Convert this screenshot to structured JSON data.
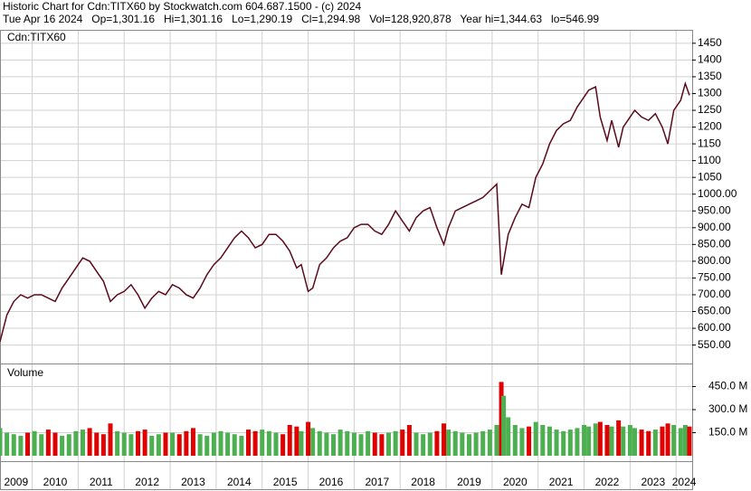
{
  "header": {
    "line1": "Historic Chart for Cdn:TITX60 by Stockwatch.com 604.687.1500 - (c) 2024",
    "line2": "Tue Apr 16 2024   Op=1,301.16   Hi=1,301.16   Lo=1,290.19   Cl=1,294.98   Vol=128,920,878   Year hi=1,344.63   lo=546.99"
  },
  "chart_data": [
    {
      "type": "line",
      "x": [
        2009.3,
        2009.45,
        2009.6,
        2009.75,
        2009.9,
        2010.05,
        2010.2,
        2010.35,
        2010.5,
        2010.65,
        2010.8,
        2010.95,
        2011.1,
        2011.25,
        2011.4,
        2011.55,
        2011.7,
        2011.85,
        2012.0,
        2012.15,
        2012.3,
        2012.45,
        2012.6,
        2012.75,
        2012.9,
        2013.05,
        2013.2,
        2013.35,
        2013.5,
        2013.65,
        2013.8,
        2013.95,
        2014.1,
        2014.25,
        2014.4,
        2014.55,
        2014.7,
        2014.85,
        2015.0,
        2015.15,
        2015.3,
        2015.45,
        2015.6,
        2015.75,
        2015.85,
        2016.0,
        2016.1,
        2016.25,
        2016.4,
        2016.55,
        2016.7,
        2016.85,
        2017.0,
        2017.15,
        2017.3,
        2017.45,
        2017.6,
        2017.75,
        2017.9,
        2018.05,
        2018.2,
        2018.35,
        2018.5,
        2018.65,
        2018.8,
        2018.95,
        2019.05,
        2019.2,
        2019.35,
        2019.5,
        2019.65,
        2019.8,
        2019.95,
        2020.1,
        2020.2,
        2020.25,
        2020.35,
        2020.5,
        2020.65,
        2020.8,
        2020.95,
        2021.1,
        2021.25,
        2021.4,
        2021.55,
        2021.7,
        2021.85,
        2022.0,
        2022.1,
        2022.25,
        2022.35,
        2022.5,
        2022.6,
        2022.75,
        2022.85,
        2023.0,
        2023.1,
        2023.25,
        2023.4,
        2023.55,
        2023.7,
        2023.82,
        2023.95,
        2024.1,
        2024.2,
        2024.29
      ],
      "series": [
        {
          "name": "Cdn:TITX60",
          "color": "#5a0a1a",
          "values": [
            560,
            640,
            680,
            700,
            690,
            700,
            700,
            690,
            680,
            720,
            750,
            780,
            810,
            800,
            770,
            740,
            680,
            700,
            710,
            730,
            700,
            660,
            690,
            710,
            700,
            730,
            720,
            700,
            690,
            720,
            760,
            790,
            810,
            840,
            870,
            890,
            870,
            840,
            850,
            880,
            880,
            860,
            830,
            780,
            790,
            710,
            720,
            790,
            810,
            840,
            860,
            870,
            900,
            910,
            910,
            890,
            880,
            910,
            950,
            920,
            890,
            930,
            950,
            960,
            900,
            850,
            900,
            950,
            960,
            970,
            980,
            990,
            1010,
            1030,
            760,
            800,
            880,
            930,
            970,
            960,
            1050,
            1090,
            1150,
            1190,
            1210,
            1220,
            1260,
            1290,
            1310,
            1320,
            1230,
            1160,
            1220,
            1140,
            1200,
            1230,
            1250,
            1230,
            1220,
            1240,
            1200,
            1150,
            1250,
            1280,
            1330,
            1295
          ]
        }
      ],
      "xlim": [
        2009.3,
        2024.35
      ],
      "xticks": [
        {
          "value": 2009,
          "label": "2009"
        },
        {
          "value": 2010,
          "label": "2010"
        },
        {
          "value": 2011,
          "label": "2011"
        },
        {
          "value": 2012,
          "label": "2012"
        },
        {
          "value": 2013,
          "label": "2013"
        },
        {
          "value": 2014,
          "label": "2014"
        },
        {
          "value": 2015,
          "label": "2015"
        },
        {
          "value": 2016,
          "label": "2016"
        },
        {
          "value": 2017,
          "label": "2017"
        },
        {
          "value": 2018,
          "label": "2018"
        },
        {
          "value": 2019,
          "label": "2019"
        },
        {
          "value": 2020,
          "label": "2020"
        },
        {
          "value": 2021,
          "label": "2021"
        },
        {
          "value": 2022,
          "label": "2022"
        },
        {
          "value": 2023,
          "label": "2023"
        },
        {
          "value": 2024,
          "label": "2024"
        }
      ],
      "ylim": [
        495,
        1490
      ],
      "yticks": [
        {
          "value": 550,
          "label": "550.00"
        },
        {
          "value": 600,
          "label": "600.00"
        },
        {
          "value": 650,
          "label": "650.00"
        },
        {
          "value": 700,
          "label": "700.00"
        },
        {
          "value": 750,
          "label": "750.00"
        },
        {
          "value": 800,
          "label": "800.00"
        },
        {
          "value": 850,
          "label": "850.00"
        },
        {
          "value": 900,
          "label": "900.00"
        },
        {
          "value": 950,
          "label": "950.00"
        },
        {
          "value": 1000,
          "label": "1000.00"
        },
        {
          "value": 1050,
          "label": "1050"
        },
        {
          "value": 1100,
          "label": "1100"
        },
        {
          "value": 1150,
          "label": "1150"
        },
        {
          "value": 1200,
          "label": "1200"
        },
        {
          "value": 1250,
          "label": "1250"
        },
        {
          "value": 1300,
          "label": "1300"
        },
        {
          "value": 1350,
          "label": "1350"
        },
        {
          "value": 1400,
          "label": "1400"
        },
        {
          "value": 1450,
          "label": "1450"
        }
      ],
      "grid": true
    },
    {
      "type": "bar",
      "title": "Volume",
      "values": [
        180,
        150,
        140,
        130,
        150,
        160,
        140,
        170,
        150,
        130,
        140,
        160,
        170,
        180,
        150,
        140,
        210,
        160,
        150,
        140,
        160,
        170,
        130,
        140,
        150,
        150,
        140,
        160,
        180,
        140,
        130,
        150,
        160,
        150,
        140,
        130,
        170,
        160,
        170,
        160,
        150,
        140,
        200,
        190,
        160,
        220,
        180,
        160,
        150,
        140,
        170,
        160,
        150,
        140,
        160,
        150,
        140,
        150,
        160,
        170,
        200,
        150,
        140,
        150,
        160,
        210,
        170,
        160,
        150,
        140,
        150,
        160,
        170,
        200,
        480,
        390,
        250,
        200,
        180,
        190,
        220,
        200,
        190,
        170,
        160,
        170,
        180,
        200,
        190,
        210,
        220,
        200,
        190,
        230,
        190,
        200,
        180,
        170,
        160,
        170,
        190,
        210,
        200,
        180,
        200,
        190
      ],
      "up_color": "#4caf50",
      "down_color": "#e00000",
      "ylim": [
        0,
        600
      ],
      "yticks": [
        {
          "value": 150,
          "label": "150.0 M"
        },
        {
          "value": 300,
          "label": "300.0 M"
        },
        {
          "value": 450,
          "label": "450.0 M"
        }
      ],
      "grid": true
    }
  ]
}
